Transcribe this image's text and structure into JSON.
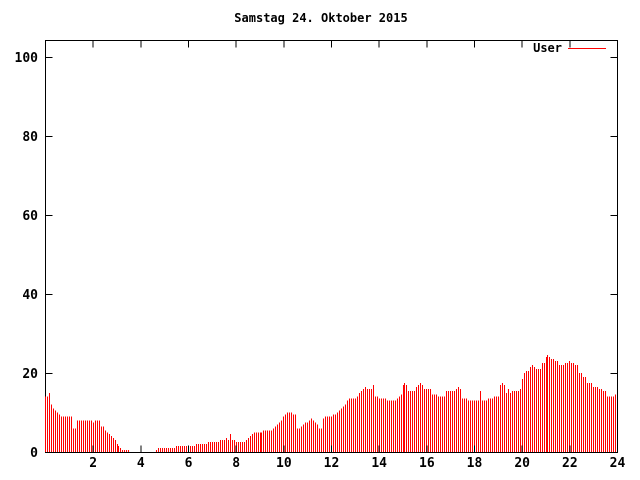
{
  "window": {
    "background": "#ffffff"
  },
  "chart_data": {
    "type": "bar",
    "style": "impulses",
    "title": "Samstag 24. Oktober 2015",
    "xlabel": "",
    "ylabel": "",
    "xlim": [
      0,
      24
    ],
    "ylim": [
      0,
      104.5
    ],
    "x_ticks": [
      2,
      4,
      6,
      8,
      10,
      12,
      14,
      16,
      18,
      20,
      22,
      24
    ],
    "y_ticks": [
      0,
      20,
      40,
      60,
      80,
      100
    ],
    "grid": false,
    "legend_position": "top-right-inside",
    "x_unit": "hour-of-day",
    "interval_minutes": 5,
    "colors": {
      "axis": "#000000",
      "background": "#ffffff",
      "series_user": "#ff0000"
    },
    "series": [
      {
        "name": "User",
        "color": "#ff0000",
        "values": [
          14,
          14,
          15,
          12,
          11,
          10.5,
          10,
          9.5,
          9,
          9,
          9,
          9,
          9,
          9,
          6,
          6,
          8,
          8,
          8,
          8,
          8,
          8,
          8,
          8,
          7.5,
          8,
          8,
          8,
          6.5,
          6.5,
          5.5,
          5,
          4.5,
          4,
          3.5,
          3,
          2,
          1.5,
          1,
          0.5,
          0.5,
          0.5,
          0.5,
          0,
          0,
          0,
          0,
          0,
          0,
          0,
          0,
          0,
          0,
          0,
          0,
          0,
          0.5,
          1,
          1,
          1,
          1,
          1,
          1,
          1,
          1,
          1,
          1.5,
          1.5,
          1.5,
          1.5,
          1.5,
          1.5,
          1.5,
          1.5,
          1.5,
          1.5,
          2,
          2,
          2,
          2,
          2,
          2,
          2.5,
          2.5,
          2.5,
          2.5,
          2.5,
          2.5,
          3,
          3,
          3,
          3.5,
          3,
          4.5,
          3,
          3,
          2.5,
          2.5,
          2.5,
          2.5,
          2.5,
          3,
          3.5,
          4,
          4.5,
          5,
          5,
          5,
          5,
          5,
          5.5,
          5.5,
          5.5,
          5.5,
          5.5,
          6,
          6.5,
          7,
          7.5,
          8,
          9,
          9.5,
          10,
          10,
          10,
          9.5,
          9.5,
          6,
          6,
          6.5,
          7,
          7.5,
          7.5,
          8,
          8.5,
          8,
          7.5,
          7,
          6,
          6,
          8.5,
          9,
          9,
          9,
          9,
          9.5,
          9.5,
          10,
          10.5,
          11,
          11.5,
          12,
          13,
          13.5,
          13.5,
          13.5,
          13.5,
          14,
          15,
          15.5,
          16,
          16.5,
          16,
          16,
          16,
          17,
          14,
          14,
          13.5,
          13.5,
          13.5,
          13.5,
          13,
          13,
          13,
          13,
          13,
          13.5,
          14,
          14.5,
          17,
          17.5,
          17,
          15.5,
          15.5,
          15.5,
          15.5,
          16.5,
          17,
          17.5,
          17,
          16,
          16,
          16,
          16,
          14.5,
          14.5,
          14.5,
          14,
          14,
          14,
          14,
          15.5,
          15.5,
          15.5,
          15.5,
          15.5,
          16,
          16.5,
          16,
          13.5,
          13.5,
          13.5,
          13,
          13,
          13,
          13,
          13,
          13,
          15.5,
          13,
          13,
          13,
          13.5,
          13.5,
          13.5,
          14,
          14,
          14,
          17,
          17.5,
          17,
          15,
          16,
          15,
          15.5,
          15.5,
          15.5,
          15.5,
          16,
          18.5,
          20,
          20.5,
          20.5,
          21.5,
          22,
          21.5,
          21,
          21,
          21,
          22.5,
          22.5,
          24,
          24.5,
          24,
          23.5,
          23.5,
          23,
          23,
          22,
          22,
          22,
          22.5,
          22.5,
          23,
          22.5,
          22.5,
          22,
          22,
          20,
          20,
          19,
          19,
          17.5,
          17.5,
          17.5,
          16.5,
          16.5,
          16.5,
          16,
          16,
          15.5,
          15.5,
          14,
          14,
          14,
          14,
          14.5
        ]
      }
    ]
  }
}
